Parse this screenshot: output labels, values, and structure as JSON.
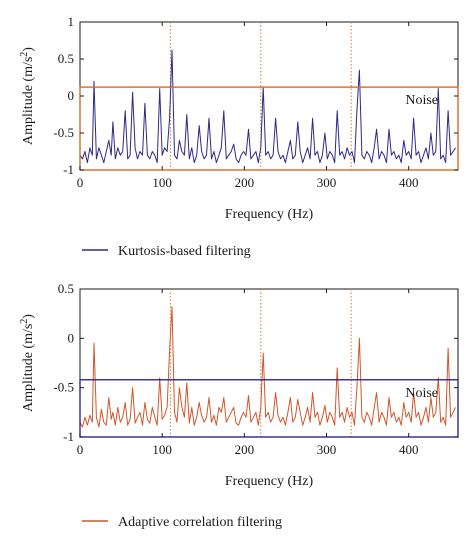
{
  "chart_data": [
    {
      "type": "line",
      "xlabel": "Frequency (Hz)",
      "ylabel": "Amplitude (m/s",
      "ylabel_sup": "2",
      "ylabel_close": ")",
      "xlim": [
        0,
        460
      ],
      "ylim": [
        -1,
        1
      ],
      "xticks": [
        "0",
        "100",
        "200",
        "300",
        "400"
      ],
      "yticks": [
        "-1",
        "-0.5",
        "0",
        "0.5",
        "1"
      ],
      "grid": false,
      "series": [
        {
          "name": "Kurtosis-based filtering",
          "color": "#2e2a86",
          "x": [
            0,
            3,
            6,
            9,
            12,
            15,
            17,
            20,
            23,
            26,
            29,
            32,
            35,
            38,
            40,
            43,
            46,
            49,
            52,
            55,
            58,
            61,
            64,
            67,
            70,
            73,
            76,
            79,
            82,
            85,
            88,
            91,
            94,
            97,
            100,
            103,
            106,
            109,
            112,
            115,
            118,
            121,
            124,
            127,
            130,
            133,
            136,
            139,
            142,
            145,
            148,
            151,
            154,
            157,
            160,
            163,
            166,
            169,
            172,
            175,
            178,
            181,
            184,
            187,
            190,
            193,
            196,
            199,
            202,
            205,
            208,
            211,
            214,
            217,
            220,
            223,
            226,
            229,
            232,
            235,
            238,
            241,
            244,
            247,
            250,
            253,
            256,
            259,
            262,
            265,
            268,
            271,
            274,
            277,
            280,
            283,
            286,
            289,
            292,
            295,
            298,
            301,
            304,
            307,
            310,
            313,
            316,
            319,
            322,
            325,
            328,
            331,
            334,
            337,
            340,
            343,
            346,
            349,
            352,
            355,
            358,
            361,
            364,
            367,
            370,
            373,
            376,
            379,
            382,
            385,
            388,
            391,
            394,
            397,
            400,
            403,
            406,
            409,
            412,
            415,
            418,
            421,
            424,
            427,
            430,
            433,
            436,
            439,
            442,
            445,
            448,
            451,
            454,
            457
          ],
          "values": [
            -0.8,
            -0.85,
            -0.75,
            -0.9,
            -0.7,
            -0.8,
            0.2,
            -0.85,
            -0.7,
            -0.8,
            -0.9,
            -0.75,
            -0.6,
            -0.8,
            -0.35,
            -0.85,
            -0.7,
            -0.8,
            -0.75,
            -0.2,
            -0.85,
            -0.8,
            0.05,
            -0.7,
            -0.85,
            -0.75,
            -0.8,
            -0.1,
            -0.8,
            -0.85,
            -0.75,
            -0.8,
            -0.9,
            0.1,
            -0.8,
            -0.7,
            -0.75,
            -0.3,
            0.62,
            -0.8,
            -0.85,
            -0.6,
            -0.75,
            -0.8,
            -0.25,
            -0.85,
            -0.7,
            -0.9,
            -0.8,
            -0.4,
            -0.75,
            -0.85,
            -0.8,
            -0.3,
            -0.85,
            -0.75,
            -0.9,
            -0.8,
            -0.7,
            -0.2,
            -0.85,
            -0.8,
            -0.75,
            -0.65,
            -0.85,
            -0.9,
            -0.8,
            -0.75,
            -0.8,
            -0.45,
            -0.85,
            -0.8,
            -0.75,
            -0.9,
            -0.7,
            0.12,
            -0.8,
            -0.75,
            -0.85,
            -0.8,
            -0.3,
            -0.75,
            -0.85,
            -0.8,
            -0.9,
            -0.75,
            -0.6,
            -0.85,
            -0.8,
            -0.35,
            -0.75,
            -0.9,
            -0.8,
            -0.7,
            -0.85,
            -0.3,
            -0.8,
            -0.75,
            -0.9,
            -0.8,
            -0.5,
            -0.85,
            -0.75,
            -0.8,
            -0.9,
            -0.2,
            -0.8,
            -0.75,
            -0.85,
            -0.7,
            -0.8,
            -0.75,
            -0.9,
            -0.2,
            0.35,
            -0.8,
            -0.85,
            -0.75,
            -0.8,
            -0.9,
            -0.7,
            -0.45,
            -0.85,
            -0.75,
            -0.8,
            -0.9,
            -0.45,
            -0.8,
            -0.75,
            -0.85,
            -0.8,
            -0.9,
            -0.6,
            -0.8,
            -0.75,
            -0.85,
            -0.3,
            -0.8,
            -0.75,
            -0.9,
            -0.8,
            -0.7,
            -0.85,
            -0.5,
            -0.8,
            -0.75,
            0.1,
            -0.85,
            -0.8,
            -0.9,
            -0.2,
            -0.8,
            -0.75,
            -0.7
          ]
        }
      ],
      "noise_level": 0.12,
      "noise_label": "Noise",
      "noise_color": "#d96a2b",
      "markers": [
        110,
        220,
        330
      ],
      "marker_color": "#e07a3a"
    },
    {
      "type": "line",
      "xlabel": "Frequency (Hz)",
      "ylabel": "Amplitude (m/s",
      "ylabel_sup": "2",
      "ylabel_close": ")",
      "xlim": [
        0,
        460
      ],
      "ylim": [
        -1,
        0.5
      ],
      "xticks": [
        "0",
        "100",
        "200",
        "300",
        "400"
      ],
      "yticks": [
        "-1",
        "-0.5",
        "0",
        "0.5"
      ],
      "grid": false,
      "series": [
        {
          "name": "Adaptive correlation filtering",
          "color": "#d2562a",
          "x": [
            0,
            3,
            6,
            9,
            12,
            15,
            17,
            20,
            23,
            26,
            29,
            32,
            35,
            38,
            40,
            43,
            46,
            49,
            52,
            55,
            58,
            61,
            64,
            67,
            70,
            73,
            76,
            79,
            82,
            85,
            88,
            91,
            94,
            97,
            100,
            103,
            106,
            109,
            112,
            115,
            118,
            121,
            124,
            127,
            130,
            133,
            136,
            139,
            142,
            145,
            148,
            151,
            154,
            157,
            160,
            163,
            166,
            169,
            172,
            175,
            178,
            181,
            184,
            187,
            190,
            193,
            196,
            199,
            202,
            205,
            208,
            211,
            214,
            217,
            220,
            223,
            226,
            229,
            232,
            235,
            238,
            241,
            244,
            247,
            250,
            253,
            256,
            259,
            262,
            265,
            268,
            271,
            274,
            277,
            280,
            283,
            286,
            289,
            292,
            295,
            298,
            301,
            304,
            307,
            310,
            313,
            316,
            319,
            322,
            325,
            328,
            331,
            334,
            337,
            340,
            343,
            346,
            349,
            352,
            355,
            358,
            361,
            364,
            367,
            370,
            373,
            376,
            379,
            382,
            385,
            388,
            391,
            394,
            397,
            400,
            403,
            406,
            409,
            412,
            415,
            418,
            421,
            424,
            427,
            430,
            433,
            436,
            439,
            442,
            445,
            448,
            451,
            454,
            457
          ],
          "values": [
            -0.85,
            -0.9,
            -0.8,
            -0.88,
            -0.78,
            -0.85,
            -0.05,
            -0.8,
            -0.9,
            -0.72,
            -0.85,
            -0.88,
            -0.6,
            -0.82,
            -0.75,
            -0.88,
            -0.7,
            -0.85,
            -0.8,
            -0.65,
            -0.88,
            -0.82,
            -0.5,
            -0.86,
            -0.8,
            -0.75,
            -0.88,
            -0.65,
            -0.82,
            -0.86,
            -0.7,
            -0.8,
            -0.88,
            -0.4,
            -0.82,
            -0.78,
            -0.7,
            -0.12,
            0.32,
            -0.75,
            -0.85,
            -0.5,
            -0.7,
            -0.8,
            -0.45,
            -0.86,
            -0.7,
            -0.88,
            -0.8,
            -0.65,
            -0.78,
            -0.85,
            -0.8,
            -0.6,
            -0.85,
            -0.78,
            -0.88,
            -0.7,
            -0.75,
            -0.6,
            -0.85,
            -0.8,
            -0.75,
            -0.7,
            -0.86,
            -0.88,
            -0.8,
            -0.75,
            -0.8,
            -0.58,
            -0.85,
            -0.8,
            -0.75,
            -0.88,
            -0.7,
            -0.15,
            -0.8,
            -0.75,
            -0.85,
            -0.8,
            -0.55,
            -0.78,
            -0.85,
            -0.8,
            -0.88,
            -0.75,
            -0.6,
            -0.85,
            -0.8,
            -0.62,
            -0.75,
            -0.88,
            -0.8,
            -0.7,
            -0.85,
            -0.55,
            -0.8,
            -0.75,
            -0.88,
            -0.8,
            -0.68,
            -0.85,
            -0.75,
            -0.8,
            -0.88,
            -0.3,
            -0.8,
            -0.75,
            -0.85,
            -0.7,
            -0.8,
            -0.75,
            -0.88,
            -0.5,
            0.0,
            -0.8,
            -0.85,
            -0.75,
            -0.8,
            -0.88,
            -0.7,
            -0.55,
            -0.85,
            -0.75,
            -0.8,
            -0.88,
            -0.6,
            -0.8,
            -0.75,
            -0.85,
            -0.8,
            -0.88,
            -0.65,
            -0.8,
            -0.75,
            -0.85,
            -0.55,
            -0.8,
            -0.75,
            -0.88,
            -0.8,
            -0.7,
            -0.85,
            -0.6,
            -0.8,
            -0.75,
            -0.4,
            -0.85,
            -0.8,
            -0.88,
            -0.1,
            -0.8,
            -0.75,
            -0.7
          ]
        }
      ],
      "noise_level": -0.42,
      "noise_label": "Noise",
      "noise_color": "#2e2a86",
      "markers": [
        110,
        220,
        330
      ],
      "marker_color": "#e07a3a"
    }
  ]
}
